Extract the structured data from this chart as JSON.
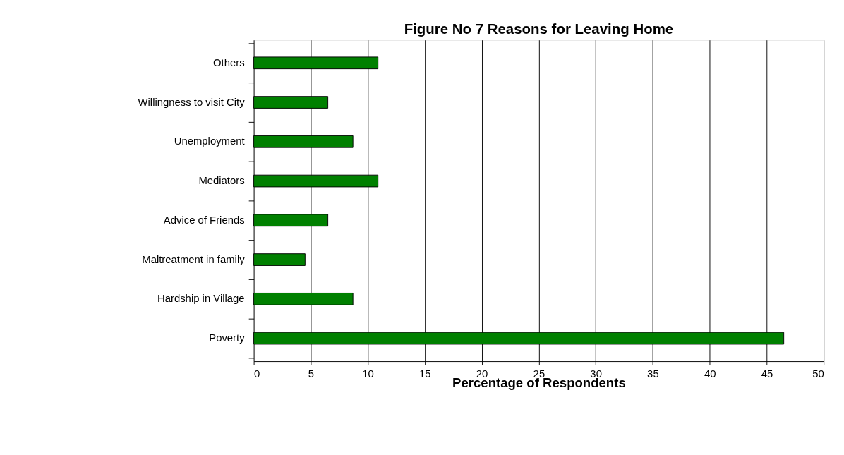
{
  "chart_data": {
    "type": "bar",
    "orientation": "horizontal",
    "title": "Figure No 7 Reasons for Leaving Home",
    "xlabel": "Percentage of Respondents",
    "categories": [
      "Others",
      "Willingness to visit City",
      "Unemployment",
      "Mediators",
      "Advice of Friends",
      "Maltreatment in family",
      "Hardship in Village",
      "Poverty"
    ],
    "values": [
      10.9,
      6.5,
      8.7,
      10.9,
      6.5,
      4.5,
      8.7,
      46.5
    ],
    "color": "#008000",
    "xlim": [
      0,
      50
    ],
    "xticks": [
      0,
      5,
      10,
      15,
      20,
      25,
      30,
      35,
      40,
      45,
      50
    ],
    "grid": "x"
  }
}
